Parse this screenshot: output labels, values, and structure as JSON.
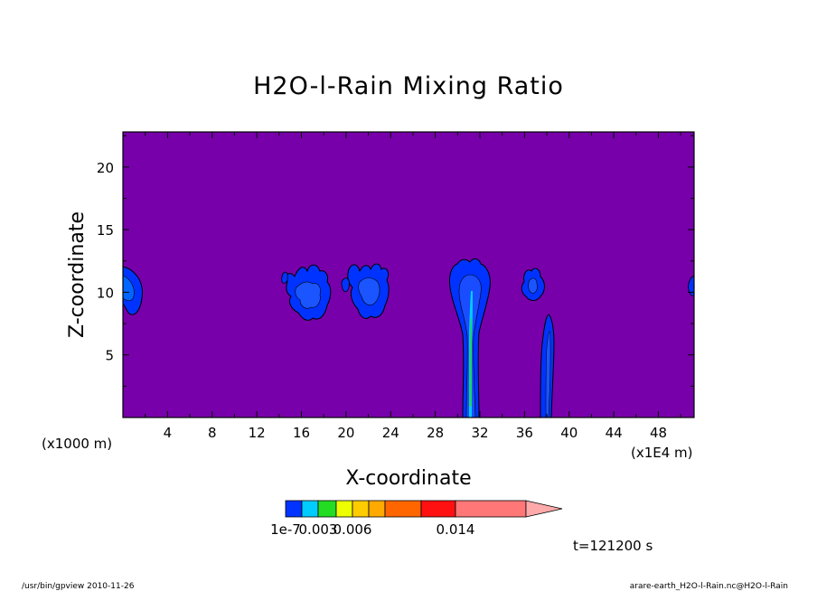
{
  "chart_data": {
    "type": "heatmap",
    "title": "H2O-l-Rain Mixing Ratio",
    "xlabel": "X-coordinate",
    "ylabel": "Z-coordinate",
    "x_unit_left": "(x1000 m)",
    "x_unit_right": "(x1E4 m)",
    "xticks": [
      "4",
      "8",
      "12",
      "16",
      "20",
      "24",
      "28",
      "32",
      "36",
      "40",
      "44",
      "48"
    ],
    "xtick_values": [
      4,
      8,
      12,
      16,
      20,
      24,
      28,
      32,
      36,
      40,
      44,
      48
    ],
    "xlim": [
      0,
      51.2
    ],
    "yticks": [
      "5",
      "10",
      "15",
      "20"
    ],
    "ytick_values": [
      5,
      10,
      15,
      20
    ],
    "ylim": [
      0,
      22.8
    ],
    "background_color": "#7700aa",
    "colorbar": {
      "colors": [
        "#0033ff",
        "#00ccff",
        "#22dd22",
        "#eeff00",
        "#ffcc00",
        "#ffaa00",
        "#ff6600",
        "#ff1111",
        "#ff7777",
        "#ffaaaa"
      ],
      "labels": [
        "1e-7",
        "0.003",
        "0.006",
        "0.014"
      ],
      "label_positions": [
        0,
        2,
        4,
        8
      ]
    },
    "time_label": "t=121200 s",
    "features": [
      {
        "x": [
          0.2,
          1.8
        ],
        "z": [
          8.2,
          12.0
        ],
        "level": "blue"
      },
      {
        "x": [
          14.5,
          19.0
        ],
        "z": [
          7.5,
          12.5
        ],
        "level": "blue"
      },
      {
        "x": [
          19.5,
          23.8
        ],
        "z": [
          7.2,
          12.8
        ],
        "level": "blue"
      },
      {
        "x": [
          29.0,
          33.0
        ],
        "z": [
          0.0,
          12.8
        ],
        "level": "blue",
        "core": "cyan-green"
      },
      {
        "x": [
          35.8,
          37.8
        ],
        "z": [
          9.5,
          12.5
        ],
        "level": "blue"
      },
      {
        "x": [
          37.5,
          38.8
        ],
        "z": [
          0.0,
          8.3
        ],
        "level": "blue"
      },
      {
        "x": [
          50.8,
          51.2
        ],
        "z": [
          9.8,
          11.0
        ],
        "level": "blue"
      }
    ]
  },
  "footer": {
    "left": "/usr/bin/gpview   2010-11-26",
    "right": "arare-earth_H2O-l-Rain.nc@H2O-l-Rain"
  }
}
